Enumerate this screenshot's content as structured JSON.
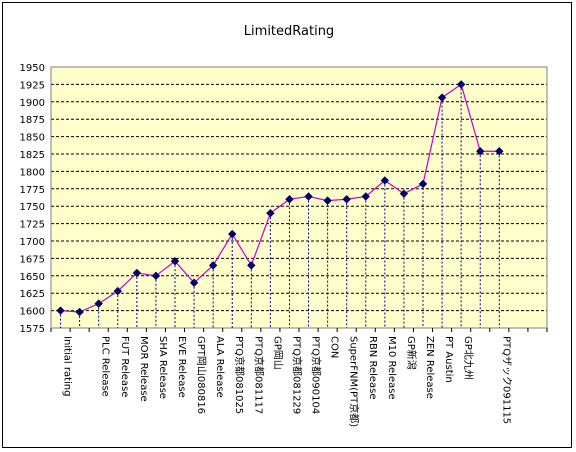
{
  "colors": {
    "plot_background": "#ffffcc",
    "line": "#cc00cc",
    "marker": "#000066",
    "gridline": "#000000",
    "drop_line": "#000099"
  },
  "chart_data": {
    "type": "line",
    "title": "LimitedRating",
    "xlabel": "",
    "ylabel": "",
    "ylim": [
      1575,
      1950
    ],
    "yticks": [
      1575,
      1600,
      1625,
      1650,
      1675,
      1700,
      1725,
      1750,
      1775,
      1800,
      1825,
      1850,
      1875,
      1900,
      1925,
      1950
    ],
    "grid": true,
    "legend": "none",
    "categories": [
      "Initial rating",
      "",
      "PLC Release",
      "FUT Release",
      "MOR Release",
      "SHA Release",
      "EVE Release",
      "GPT岡山080816",
      "ALA Release",
      "PTQ京都081025",
      "PTQ京都081117",
      "GP岡山",
      "PTQ京都081229",
      "PTQ京都090104",
      "CON",
      "SuperFNM(PT京都)",
      "RBN Release",
      "M10 Release",
      "GP新潟",
      "ZEN Release",
      "PT Austin",
      "GP北九州",
      "",
      "PTQザック091115",
      "",
      ""
    ],
    "values": [
      1600,
      1598,
      1610,
      1628,
      1654,
      1650,
      1671,
      1640,
      1665,
      1710,
      1665,
      1740,
      1760,
      1764,
      1758,
      1760,
      1764,
      1787,
      1768,
      1782,
      1906,
      1925,
      1829,
      1829,
      null,
      null
    ]
  }
}
